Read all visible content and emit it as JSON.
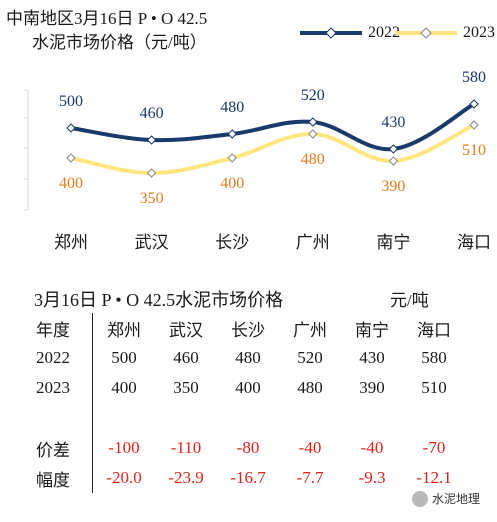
{
  "header": {
    "line1": "中南地区3月16日  P • O 42.5",
    "line2": "水泥市场价格（元/吨）"
  },
  "colors": {
    "series_2022": "#1a3a6b",
    "series_2023": "#ffe680",
    "label_2022": "#1a3a6b",
    "label_2023": "#e87c1e",
    "negative": "#e2231a"
  },
  "chart_data": {
    "type": "line",
    "categories": [
      "郑州",
      "武汉",
      "长沙",
      "广州",
      "南宁",
      "海口"
    ],
    "series": [
      {
        "name": "2022",
        "values": [
          500,
          460,
          480,
          520,
          430,
          580
        ]
      },
      {
        "name": "2023",
        "values": [
          400,
          350,
          400,
          480,
          390,
          510
        ]
      }
    ],
    "xlabel": "",
    "ylabel": "",
    "ylim": [
      300,
      600
    ],
    "legend_position": "top-right",
    "grid": false
  },
  "table": {
    "title": "3月16日 P • O 42.5水泥市场价格",
    "unit": "元/吨",
    "header_label": "年度",
    "columns": [
      "郑州",
      "武汉",
      "长沙",
      "广州",
      "南宁",
      "海口"
    ],
    "rows": [
      {
        "label": "2022",
        "values": [
          "500",
          "460",
          "480",
          "520",
          "430",
          "580"
        ]
      },
      {
        "label": "2023",
        "values": [
          "400",
          "350",
          "400",
          "480",
          "390",
          "510"
        ]
      }
    ],
    "diff_rows": [
      {
        "label": "价差",
        "values": [
          "-100",
          "-110",
          "-80",
          "-40",
          "-40",
          "-70"
        ]
      },
      {
        "label": "幅度",
        "values": [
          "-20.0",
          "-23.9",
          "-16.7",
          "-7.7",
          "-9.3",
          "-12.1"
        ]
      }
    ]
  },
  "watermark": {
    "text": "水泥地理",
    "icon": "wechat-icon"
  }
}
